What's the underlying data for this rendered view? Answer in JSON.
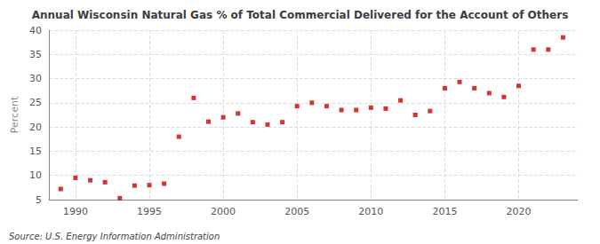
{
  "chart_data": {
    "type": "scatter",
    "title": "Annual Wisconsin Natural Gas % of Total Commercial Delivered for the Account of Others",
    "ylabel": "Percent",
    "annotations": [
      "Source: U.S. Energy Information Administration"
    ],
    "x": [
      1989,
      1990,
      1991,
      1992,
      1993,
      1994,
      1995,
      1996,
      1997,
      1998,
      1999,
      2000,
      2001,
      2002,
      2003,
      2004,
      2005,
      2006,
      2007,
      2008,
      2009,
      2010,
      2011,
      2012,
      2013,
      2014,
      2015,
      2016,
      2017,
      2018,
      2019,
      2020,
      2021,
      2022,
      2023
    ],
    "values": [
      7.2,
      9.5,
      9.0,
      8.6,
      5.3,
      7.9,
      8.0,
      8.3,
      18.0,
      26.0,
      21.1,
      22.0,
      22.8,
      21.0,
      20.5,
      21.0,
      24.3,
      25.0,
      24.3,
      23.5,
      23.5,
      24.0,
      23.8,
      25.5,
      22.5,
      23.3,
      28.0,
      29.3,
      28.0,
      27.0,
      26.2,
      28.5,
      36.0,
      36.0,
      38.5
    ],
    "color": "#cc0000",
    "marker": "square",
    "xlim": [
      1988.2,
      2024.0
    ],
    "xticks": [
      1990,
      1995,
      2000,
      2005,
      2010,
      2015,
      2020
    ],
    "ylim": [
      5,
      40
    ],
    "yticks": [
      5,
      10,
      15,
      20,
      25,
      30,
      35,
      40
    ],
    "grid": true
  }
}
